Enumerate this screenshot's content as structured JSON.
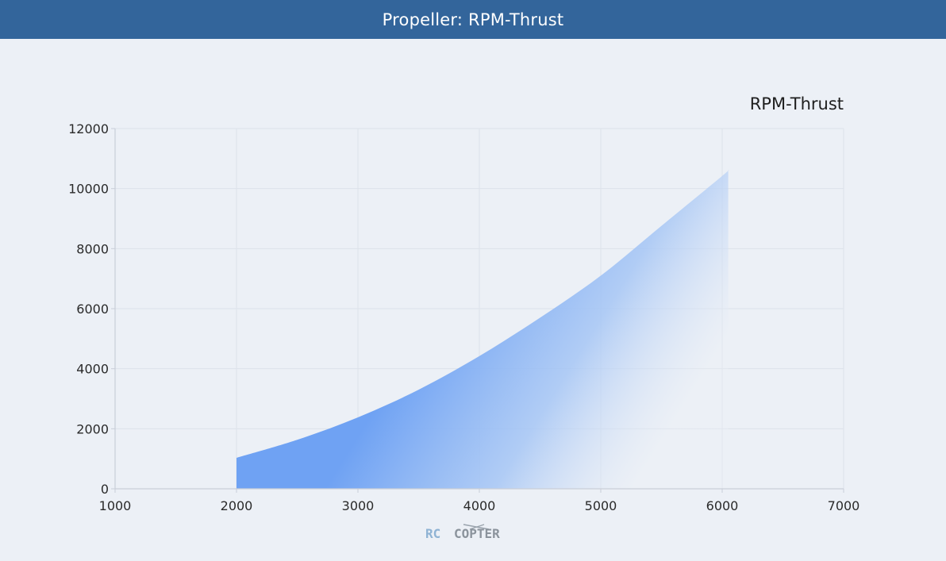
{
  "header": {
    "title": "Propeller: RPM-Thrust"
  },
  "colors": {
    "header_bg": "#33659b",
    "series": "#5b97f1",
    "grid": "#dde2ea",
    "axis": "#c9ced8"
  },
  "chart_data": {
    "type": "area",
    "title": "RPM-Thrust",
    "xlabel": "",
    "ylabel": "",
    "xlim": [
      1000,
      7000
    ],
    "ylim": [
      0,
      12000
    ],
    "x_ticks": [
      1000,
      2000,
      3000,
      4000,
      5000,
      6000,
      7000
    ],
    "y_ticks": [
      0,
      2000,
      4000,
      6000,
      8000,
      10000,
      12000
    ],
    "grid": true,
    "legend": "none",
    "series": [
      {
        "x": [
          2000,
          2500,
          3000,
          3500,
          4000,
          4500,
          5000,
          5500,
          6000,
          6050
        ],
        "y": [
          1030,
          1630,
          2380,
          3300,
          4420,
          5700,
          7100,
          8760,
          10420,
          10620
        ]
      }
    ]
  },
  "logo": {
    "left": "RC",
    "right": "COPTER"
  }
}
